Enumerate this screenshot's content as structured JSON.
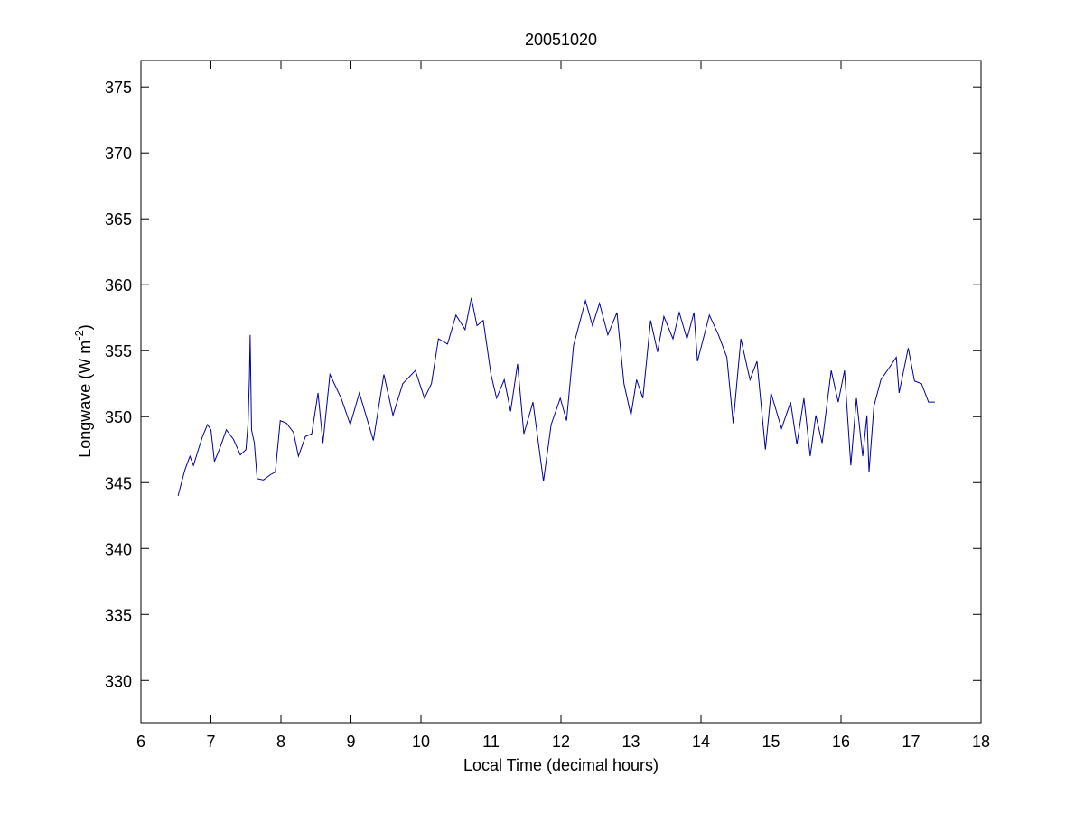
{
  "chart_data": {
    "type": "line",
    "title": "20051020",
    "xlabel": "Local Time (decimal hours)",
    "ylabel": [
      "Longwave (W m",
      "-2",
      ")"
    ],
    "xlim": [
      6,
      18
    ],
    "xticks": [
      6,
      7,
      8,
      9,
      10,
      11,
      12,
      13,
      14,
      15,
      16,
      17,
      18
    ],
    "ylim": [
      326.8,
      377
    ],
    "yticks": [
      330,
      335,
      340,
      345,
      350,
      355,
      360,
      365,
      370,
      375
    ],
    "series": [
      {
        "color": "#0000a0",
        "x": [
          6.53,
          6.58,
          6.63,
          6.7,
          6.75,
          6.82,
          6.88,
          6.95,
          7.0,
          7.05,
          7.12,
          7.22,
          7.32,
          7.42,
          7.5,
          7.53,
          7.55,
          7.56,
          7.58,
          7.62,
          7.66,
          7.75,
          7.85,
          7.92,
          7.99,
          8.08,
          8.18,
          8.25,
          8.35,
          8.44,
          8.53,
          8.6,
          8.7,
          8.86,
          8.99,
          9.12,
          9.32,
          9.47,
          9.6,
          9.74,
          9.92,
          10.05,
          10.15,
          10.25,
          10.38,
          10.5,
          10.63,
          10.72,
          10.8,
          10.89,
          11.0,
          11.08,
          11.19,
          11.28,
          11.38,
          11.47,
          11.6,
          11.75,
          11.86,
          11.99,
          12.08,
          12.18,
          12.35,
          12.45,
          12.55,
          12.67,
          12.8,
          12.9,
          13.0,
          13.08,
          13.17,
          13.28,
          13.38,
          13.47,
          13.6,
          13.69,
          13.8,
          13.9,
          13.95,
          14.12,
          14.25,
          14.37,
          14.46,
          14.57,
          14.7,
          14.8,
          14.92,
          15.0,
          15.15,
          15.28,
          15.37,
          15.47,
          15.56,
          15.64,
          15.73,
          15.86,
          15.96,
          16.05,
          16.14,
          16.22,
          16.31,
          16.37,
          16.4,
          16.47,
          16.57,
          16.7,
          16.79,
          16.83,
          16.96,
          17.05,
          17.15,
          17.25,
          17.34
        ],
        "values": [
          344,
          345,
          346,
          347,
          346.3,
          347.5,
          348.5,
          349.4,
          349,
          346.6,
          347.5,
          349,
          348.3,
          347.1,
          347.5,
          349.5,
          353,
          356.2,
          349,
          348,
          345.3,
          345.2,
          345.6,
          345.8,
          349.7,
          349.5,
          348.8,
          347,
          348.5,
          348.7,
          351.8,
          348,
          353.2,
          351.4,
          349.4,
          351.8,
          348.2,
          353.2,
          350.1,
          352.5,
          353.5,
          351.4,
          352.5,
          355.9,
          355.5,
          357.7,
          356.6,
          359,
          356.9,
          357.3,
          353.2,
          351.4,
          352.8,
          350.4,
          354,
          348.7,
          351.1,
          345.1,
          349.4,
          351.4,
          349.7,
          355.4,
          358.8,
          356.9,
          358.6,
          356.2,
          357.9,
          352.5,
          350.1,
          352.8,
          351.4,
          357.3,
          354.9,
          357.6,
          355.9,
          357.9,
          355.9,
          357.9,
          354.2,
          357.7,
          356.2,
          354.5,
          349.5,
          355.9,
          352.8,
          354.2,
          347.5,
          351.8,
          349.1,
          351.1,
          347.9,
          351.4,
          347,
          350.1,
          348,
          353.5,
          351.1,
          353.5,
          346.3,
          351.4,
          347,
          350.1,
          345.8,
          350.8,
          352.8,
          353.8,
          354.5,
          351.8,
          355.2,
          352.7,
          352.5,
          351.1,
          351.1
        ]
      }
    ]
  }
}
